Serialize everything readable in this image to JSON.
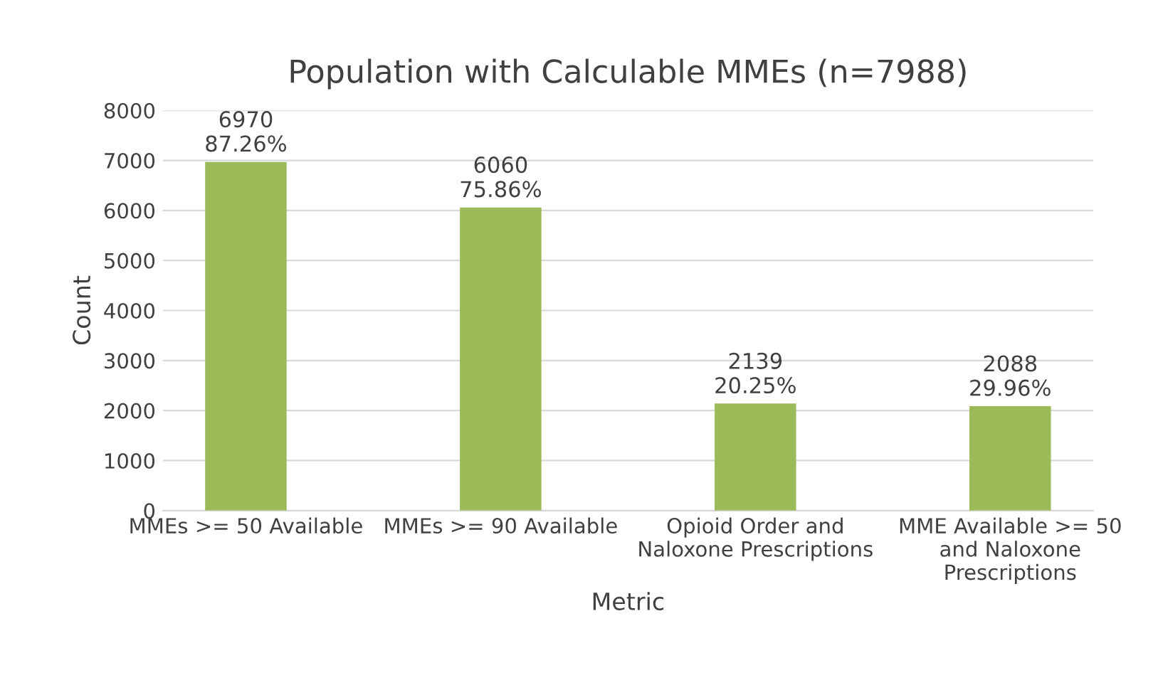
{
  "chart_data": {
    "type": "bar",
    "title": "Population with Calculable MMEs (n=7988)",
    "xlabel": "Metric",
    "ylabel": "Count",
    "categories": [
      "MMEs >= 50 Available",
      "MMEs >= 90 Available",
      "Opioid Order and\nNaloxone Prescriptions",
      "MME Available >= 50\nand Naloxone\nPrescriptions"
    ],
    "values": [
      6970,
      6060,
      2139,
      2088
    ],
    "value_labels": [
      "6970\n87.26%",
      "6060\n75.86%",
      "2139\n20.25%",
      "2088\n29.96%"
    ],
    "color": "#9bbb59",
    "ylim": [
      0,
      8000
    ],
    "yticks": [
      0,
      1000,
      2000,
      3000,
      4000,
      5000,
      6000,
      7000,
      8000
    ],
    "grid": "y"
  }
}
